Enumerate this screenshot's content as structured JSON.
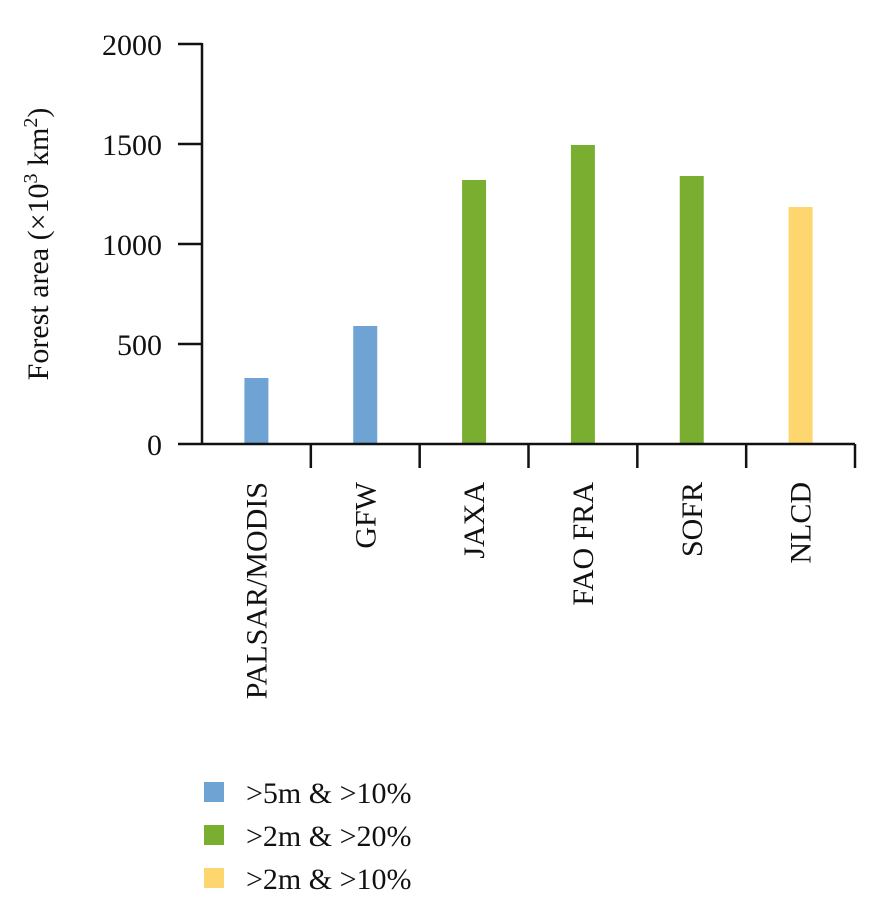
{
  "chart_data": {
    "type": "bar",
    "categories": [
      "PALSAR/MODIS",
      "GFW",
      "JAXA",
      "FAO FRA",
      "SOFR",
      "NLCD"
    ],
    "values": [
      330,
      590,
      1320,
      1495,
      1340,
      1185
    ],
    "category_groups": [
      0,
      0,
      1,
      1,
      1,
      2
    ],
    "ylabel_main": "Forest area (×10",
    "ylabel_sup1": "3",
    "ylabel_mid": " km",
    "ylabel_sup2": "2",
    "ylabel_end": ")",
    "xlabel": "",
    "ylim": [
      0,
      2000
    ],
    "yticks": [
      0,
      500,
      1000,
      1500,
      2000
    ],
    "grid": false,
    "legend_position": "bottom-left",
    "legend": [
      {
        "label": ">5m & >10%",
        "color": "#6fa3d3"
      },
      {
        "label": ">2m & >20%",
        "color": "#7aae30"
      },
      {
        "label": ">2m & >10%",
        "color": "#fed66f"
      }
    ]
  }
}
